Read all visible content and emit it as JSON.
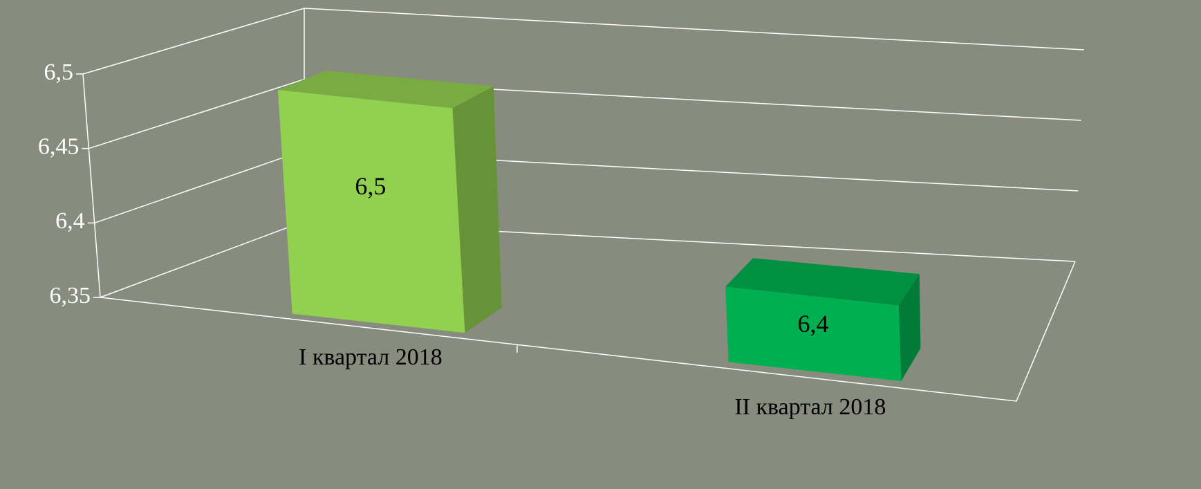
{
  "chart_data": {
    "type": "bar3d",
    "categories": [
      "I квартал 2018",
      "II квартал 2018"
    ],
    "values": [
      6.5,
      6.4
    ],
    "value_labels": [
      "6,5",
      "6,4"
    ],
    "colors": [
      "#92d050",
      "#00b050"
    ],
    "ylim": [
      6.35,
      6.5
    ],
    "yticks": [
      {
        "value": 6.35,
        "label": "6,35"
      },
      {
        "value": 6.4,
        "label": "6,4"
      },
      {
        "value": 6.45,
        "label": "6,45"
      },
      {
        "value": 6.5,
        "label": "6,5"
      }
    ],
    "grid": true
  }
}
